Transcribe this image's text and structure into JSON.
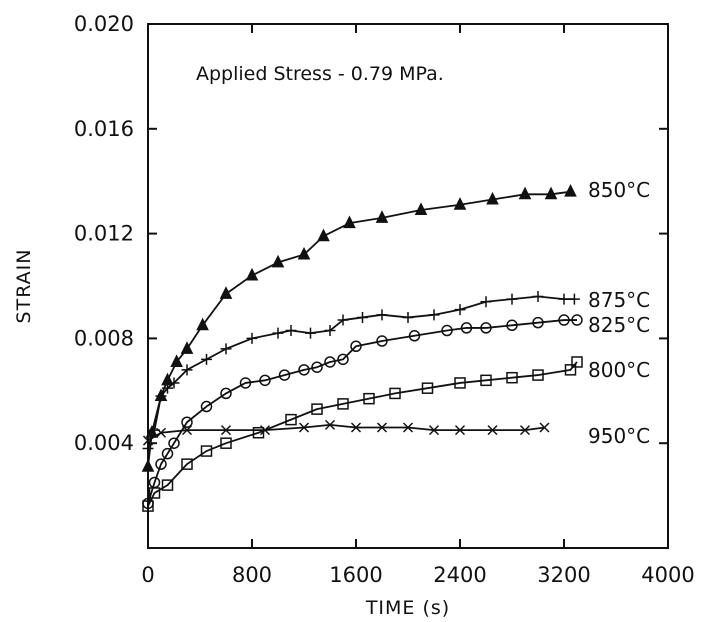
{
  "chart_data": {
    "type": "line",
    "title": "",
    "annotation": "Applied Stress - 0.79 MPa.",
    "xlabel": "TIME (s)",
    "ylabel": "STRAIN",
    "xlim": [
      0,
      4000
    ],
    "ylim": [
      0,
      0.02
    ],
    "x_ticks": [
      0,
      800,
      1600,
      2400,
      3200,
      4000
    ],
    "x_tick_labels": [
      "0",
      "800",
      "1600",
      "2400",
      "3200",
      "4000"
    ],
    "y_ticks": [
      0.004,
      0.008,
      0.012,
      0.016,
      0.02
    ],
    "y_tick_labels": [
      "0.004",
      "0.008",
      "0.012",
      "0.016",
      "0.020"
    ],
    "grid": false,
    "series": [
      {
        "name": "850°C",
        "marker": "filled-triangle",
        "x": [
          0,
          30,
          100,
          150,
          220,
          300,
          420,
          600,
          800,
          1000,
          1200,
          1350,
          1550,
          1800,
          2100,
          2400,
          2650,
          2900,
          3100,
          3250
        ],
        "y": [
          0.0031,
          0.0044,
          0.0058,
          0.0064,
          0.0071,
          0.0076,
          0.0085,
          0.0097,
          0.0104,
          0.0109,
          0.0112,
          0.0119,
          0.0124,
          0.0126,
          0.0129,
          0.0131,
          0.0133,
          0.0135,
          0.0135,
          0.0136
        ]
      },
      {
        "name": "875°C",
        "marker": "plus",
        "x": [
          0,
          50,
          100,
          150,
          200,
          300,
          450,
          600,
          800,
          1000,
          1100,
          1250,
          1400,
          1500,
          1650,
          1800,
          2000,
          2200,
          2400,
          2600,
          2800,
          3000,
          3200,
          3280
        ],
        "y": [
          0.0038,
          0.0045,
          0.0058,
          0.0061,
          0.0063,
          0.0068,
          0.0072,
          0.0076,
          0.008,
          0.0082,
          0.0083,
          0.0082,
          0.0083,
          0.0087,
          0.0088,
          0.0089,
          0.0088,
          0.0089,
          0.0091,
          0.0094,
          0.0095,
          0.0096,
          0.0095,
          0.0095
        ]
      },
      {
        "name": "825°C",
        "marker": "circle",
        "x": [
          0,
          50,
          100,
          150,
          200,
          300,
          450,
          600,
          750,
          900,
          1050,
          1200,
          1300,
          1400,
          1500,
          1600,
          1800,
          2050,
          2300,
          2450,
          2600,
          2800,
          3000,
          3200,
          3300
        ],
        "y": [
          0.0017,
          0.0025,
          0.0032,
          0.0036,
          0.004,
          0.0048,
          0.0054,
          0.0059,
          0.0063,
          0.0064,
          0.0066,
          0.0068,
          0.0069,
          0.0071,
          0.0072,
          0.0077,
          0.0079,
          0.0081,
          0.0083,
          0.0084,
          0.0084,
          0.0085,
          0.0086,
          0.0087,
          0.0087
        ]
      },
      {
        "name": "800°C",
        "marker": "square",
        "x": [
          0,
          50,
          150,
          300,
          450,
          600,
          850,
          1100,
          1300,
          1500,
          1700,
          1900,
          2150,
          2400,
          2600,
          2800,
          3000,
          3250,
          3300
        ],
        "y": [
          0.0016,
          0.0021,
          0.0024,
          0.0032,
          0.0037,
          0.004,
          0.0044,
          0.0049,
          0.0053,
          0.0055,
          0.0057,
          0.0059,
          0.0061,
          0.0063,
          0.0064,
          0.0065,
          0.0066,
          0.0068,
          0.0071
        ]
      },
      {
        "name": "950°C",
        "marker": "x",
        "x": [
          0,
          100,
          300,
          600,
          900,
          1200,
          1400,
          1600,
          1800,
          2000,
          2200,
          2400,
          2650,
          2900,
          3050
        ],
        "y": [
          0.0041,
          0.0044,
          0.0045,
          0.0045,
          0.0045,
          0.0046,
          0.0047,
          0.0046,
          0.0046,
          0.0046,
          0.0045,
          0.0045,
          0.0045,
          0.0045,
          0.0046
        ]
      }
    ]
  }
}
